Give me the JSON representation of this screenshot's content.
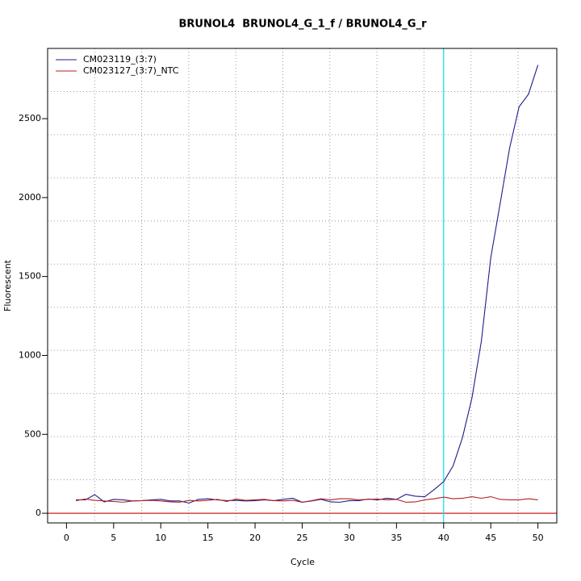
{
  "chart_data": {
    "type": "line",
    "title": "BRUNOL4  BRUNOL4_G_1_f / BRUNOL4_G_r",
    "x_label": "Cycle",
    "y_label": "Fluorescent",
    "x": [
      1,
      2,
      3,
      4,
      5,
      6,
      7,
      8,
      9,
      10,
      11,
      12,
      13,
      14,
      15,
      16,
      17,
      18,
      19,
      20,
      21,
      22,
      23,
      24,
      25,
      26,
      27,
      28,
      29,
      30,
      31,
      32,
      33,
      34,
      35,
      36,
      37,
      38,
      39,
      40,
      41,
      42,
      43,
      44,
      45,
      46,
      47,
      48,
      49,
      50
    ],
    "series": [
      {
        "name": "CM023119_(3:7)",
        "color": "#1c1c8a",
        "values": [
          85,
          85,
          118,
          72,
          88,
          85,
          78,
          80,
          85,
          88,
          78,
          78,
          65,
          88,
          92,
          85,
          80,
          82,
          78,
          80,
          85,
          80,
          88,
          95,
          70,
          78,
          88,
          72,
          70,
          80,
          80,
          90,
          85,
          95,
          88,
          120,
          108,
          105,
          150,
          200,
          300,
          480,
          730,
          1090,
          1620,
          1965,
          2315,
          2575,
          2655,
          2840
        ]
      },
      {
        "name": "CM023127_(3:7)_NTC",
        "color": "#b22222",
        "values": [
          80,
          90,
          82,
          78,
          75,
          70,
          78,
          80,
          82,
          78,
          72,
          70,
          82,
          78,
          82,
          88,
          75,
          90,
          82,
          85,
          88,
          80,
          78,
          82,
          70,
          80,
          92,
          85,
          92,
          92,
          85,
          88,
          90,
          85,
          88,
          70,
          72,
          85,
          92,
          102,
          92,
          95,
          105,
          95,
          105,
          88,
          85,
          85,
          92,
          85
        ]
      }
    ],
    "xlim": [
      -2,
      52
    ],
    "ylim": [
      -61,
      2945
    ],
    "xticks": [
      0,
      5,
      10,
      15,
      20,
      25,
      30,
      35,
      40,
      45,
      50
    ],
    "yticks": [
      0,
      500,
      1000,
      1500,
      2000,
      2500
    ],
    "vline": {
      "value": 40,
      "color": "#00e5ee"
    },
    "hline": {
      "value": 0,
      "color": "#cc0000"
    },
    "grid": true,
    "legend": "top-left"
  }
}
